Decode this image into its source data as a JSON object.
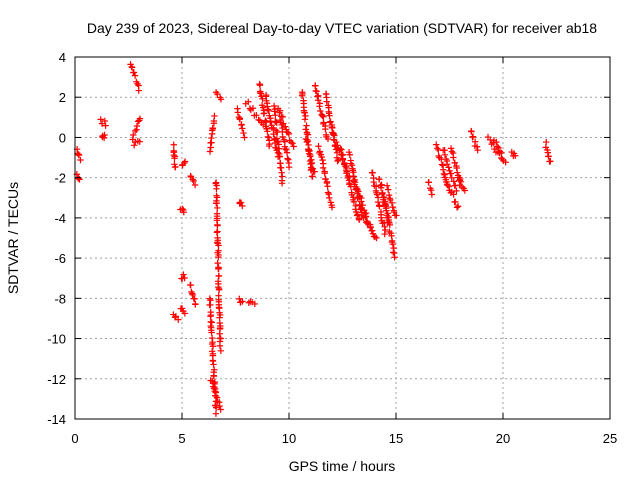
{
  "chart_data": {
    "type": "scatter",
    "title": "Day 239 of 2023, Sidereal Day-to-day VTEC variation (SDTVAR) for receiver ab18",
    "xlabel": "GPS time / hours",
    "ylabel": "SDTVAR / TECUs",
    "xlim": [
      0,
      25
    ],
    "ylim": [
      -14,
      4
    ],
    "xticks": [
      "0",
      "5",
      "10",
      "15",
      "20",
      "25"
    ],
    "yticks": [
      "4",
      "2",
      "0",
      "-2",
      "-4",
      "-6",
      "-8",
      "-10",
      "-12",
      "-14"
    ],
    "grid": true,
    "marker": "plus",
    "color": "#ff0000",
    "series_segments": [
      {
        "x0": 0.1,
        "x1": 0.25,
        "y0": -0.6,
        "y1": -1.1
      },
      {
        "x0": 0.1,
        "x1": 0.2,
        "y0": -1.9,
        "y1": -2.0
      },
      {
        "x0": 1.2,
        "x1": 1.45,
        "y0": 0.9,
        "y1": 0.6
      },
      {
        "x0": 1.25,
        "x1": 1.4,
        "y0": 0.1,
        "y1": 0.0
      },
      {
        "x0": 2.6,
        "x1": 3.0,
        "y0": 3.7,
        "y1": 2.4
      },
      {
        "x0": 2.7,
        "x1": 3.05,
        "y0": 0.0,
        "y1": 1.0
      },
      {
        "x0": 2.75,
        "x1": 3.0,
        "y0": -0.3,
        "y1": -0.3
      },
      {
        "x0": 4.6,
        "x1": 4.7,
        "y0": -0.4,
        "y1": -1.6
      },
      {
        "x0": 4.6,
        "x1": 4.8,
        "y0": -8.9,
        "y1": -9.0
      },
      {
        "x0": 4.95,
        "x1": 5.1,
        "y0": -3.5,
        "y1": -3.8
      },
      {
        "x0": 5.0,
        "x1": 5.1,
        "y0": -6.9,
        "y1": -6.9
      },
      {
        "x0": 4.95,
        "x1": 5.15,
        "y0": -8.4,
        "y1": -8.7
      },
      {
        "x0": 5.0,
        "x1": 5.15,
        "y0": -1.3,
        "y1": -1.1
      },
      {
        "x0": 5.4,
        "x1": 5.6,
        "y0": -1.9,
        "y1": -2.4
      },
      {
        "x0": 5.4,
        "x1": 5.65,
        "y0": -7.3,
        "y1": -8.4
      },
      {
        "x0": 6.3,
        "x1": 6.5,
        "y0": -0.7,
        "y1": 1.0
      },
      {
        "x0": 6.3,
        "x1": 6.6,
        "y0": -8.0,
        "y1": -13.7
      },
      {
        "x0": 6.35,
        "x1": 6.8,
        "y0": -12.0,
        "y1": -13.5
      },
      {
        "x0": 6.6,
        "x1": 6.8,
        "y0": -2.2,
        "y1": -10.5
      },
      {
        "x0": 6.6,
        "x1": 6.85,
        "y0": 2.3,
        "y1": 1.9
      },
      {
        "x0": 7.7,
        "x1": 7.8,
        "y0": -3.3,
        "y1": -3.3
      },
      {
        "x0": 7.65,
        "x1": 7.8,
        "y0": -8.1,
        "y1": -8.2
      },
      {
        "x0": 8.1,
        "x1": 8.4,
        "y0": -8.2,
        "y1": -8.3
      },
      {
        "x0": 7.6,
        "x1": 7.9,
        "y0": 1.4,
        "y1": 0.1
      },
      {
        "x0": 8.0,
        "x1": 8.9,
        "y0": 1.8,
        "y1": 0.5
      },
      {
        "x0": 8.6,
        "x1": 9.1,
        "y0": 2.7,
        "y1": -0.5
      },
      {
        "x0": 8.9,
        "x1": 9.5,
        "y0": 2.2,
        "y1": -1.0
      },
      {
        "x0": 9.3,
        "x1": 9.7,
        "y0": 1.5,
        "y1": -2.2
      },
      {
        "x0": 9.5,
        "x1": 10.2,
        "y0": 1.5,
        "y1": -0.5
      },
      {
        "x0": 9.6,
        "x1": 10.0,
        "y0": 0.8,
        "y1": -1.4
      },
      {
        "x0": 10.6,
        "x1": 11.1,
        "y0": 2.3,
        "y1": -2.0
      },
      {
        "x0": 10.8,
        "x1": 11.2,
        "y0": -0.2,
        "y1": -1.8
      },
      {
        "x0": 11.2,
        "x1": 11.8,
        "y0": 2.7,
        "y1": -0.1
      },
      {
        "x0": 11.4,
        "x1": 12.0,
        "y0": -0.5,
        "y1": -3.4
      },
      {
        "x0": 11.7,
        "x1": 12.3,
        "y0": 2.2,
        "y1": -1.2
      },
      {
        "x0": 12.0,
        "x1": 12.8,
        "y0": 0.4,
        "y1": -2.0
      },
      {
        "x0": 12.4,
        "x1": 13.3,
        "y0": -0.5,
        "y1": -4.2
      },
      {
        "x0": 12.8,
        "x1": 13.4,
        "y0": -0.8,
        "y1": -3.8
      },
      {
        "x0": 13.0,
        "x1": 13.9,
        "y0": -2.0,
        "y1": -4.8
      },
      {
        "x0": 13.3,
        "x1": 14.1,
        "y0": -3.5,
        "y1": -5.1
      },
      {
        "x0": 13.9,
        "x1": 14.5,
        "y0": -1.7,
        "y1": -4.8
      },
      {
        "x0": 14.2,
        "x1": 14.7,
        "y0": -2.0,
        "y1": -4.2
      },
      {
        "x0": 14.4,
        "x1": 14.95,
        "y0": -2.8,
        "y1": -5.9
      },
      {
        "x0": 14.6,
        "x1": 15.0,
        "y0": -2.5,
        "y1": -4.0
      },
      {
        "x0": 16.5,
        "x1": 16.7,
        "y0": -2.2,
        "y1": -2.8
      },
      {
        "x0": 16.9,
        "x1": 17.4,
        "y0": -0.4,
        "y1": -2.3
      },
      {
        "x0": 17.2,
        "x1": 17.8,
        "y0": -0.6,
        "y1": -2.6
      },
      {
        "x0": 17.3,
        "x1": 17.9,
        "y0": -2.0,
        "y1": -3.5
      },
      {
        "x0": 17.6,
        "x1": 18.0,
        "y0": -0.6,
        "y1": -2.3
      },
      {
        "x0": 17.9,
        "x1": 18.2,
        "y0": -1.8,
        "y1": -2.6
      },
      {
        "x0": 18.5,
        "x1": 18.8,
        "y0": 0.4,
        "y1": -0.6
      },
      {
        "x0": 19.3,
        "x1": 19.9,
        "y0": 0.0,
        "y1": -1.0
      },
      {
        "x0": 19.6,
        "x1": 20.1,
        "y0": -0.2,
        "y1": -1.2
      },
      {
        "x0": 20.4,
        "x1": 20.6,
        "y0": -0.8,
        "y1": -0.9
      },
      {
        "x0": 22.0,
        "x1": 22.2,
        "y0": -0.3,
        "y1": -1.3
      }
    ]
  }
}
